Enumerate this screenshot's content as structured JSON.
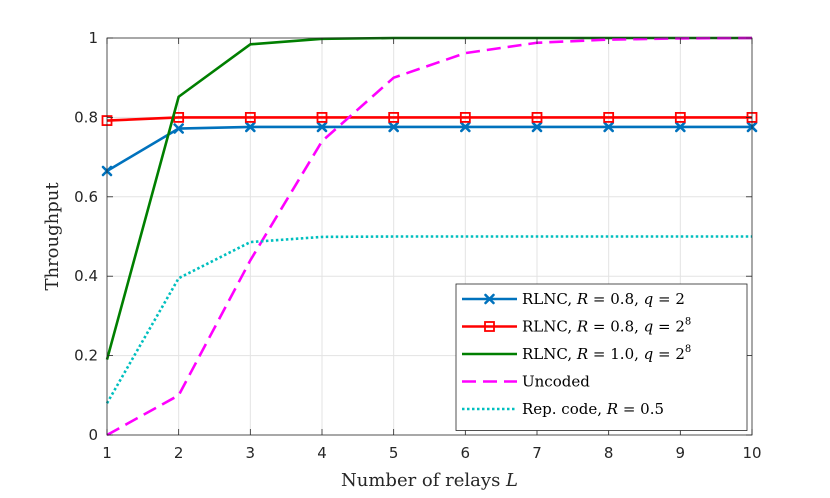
{
  "chart_data": {
    "type": "line",
    "title": "",
    "xlabel": "Number of relays L",
    "xlabel_parts": {
      "text": "Number of relays ",
      "var": "L"
    },
    "ylabel": "Throughput",
    "xlim": [
      1,
      10
    ],
    "ylim": [
      0,
      1
    ],
    "xticks": [
      1,
      2,
      3,
      4,
      5,
      6,
      7,
      8,
      9,
      10
    ],
    "yticks": [
      0,
      0.2,
      0.4,
      0.6,
      0.8,
      1
    ],
    "ytick_labels": [
      "0",
      "0.2",
      "0.4",
      "0.6",
      "0.8",
      "1"
    ],
    "grid": true,
    "legend_position": "bottom-right",
    "series": [
      {
        "name": "RLNC, R = 0.8, q = 2",
        "legend_parts": {
          "pre": "RLNC, ",
          "a_var": "R",
          "a_val": " = 0.8, ",
          "b_var": "q",
          "b_val": " = 2",
          "sup": ""
        },
        "color": "#0072BD",
        "style": "solid",
        "marker": "x",
        "x": [
          1,
          2,
          3,
          4,
          5,
          6,
          7,
          8,
          9,
          10
        ],
        "values": [
          0.665,
          0.772,
          0.776,
          0.776,
          0.776,
          0.776,
          0.776,
          0.776,
          0.776,
          0.776
        ]
      },
      {
        "name": "RLNC, R = 0.8, q = 2^8",
        "legend_parts": {
          "pre": "RLNC, ",
          "a_var": "R",
          "a_val": " = 0.8, ",
          "b_var": "q",
          "b_val": " = 2",
          "sup": "8"
        },
        "color": "#FF0000",
        "style": "solid",
        "marker": "square",
        "x": [
          1,
          2,
          3,
          4,
          5,
          6,
          7,
          8,
          9,
          10
        ],
        "values": [
          0.792,
          0.8,
          0.8,
          0.8,
          0.8,
          0.8,
          0.8,
          0.8,
          0.8,
          0.8
        ]
      },
      {
        "name": "RLNC, R = 1.0, q = 2^8",
        "legend_parts": {
          "pre": "RLNC, ",
          "a_var": "R",
          "a_val": " = 1.0, ",
          "b_var": "q",
          "b_val": " = 2",
          "sup": "8"
        },
        "color": "#007F00",
        "style": "solid",
        "marker": "none",
        "x": [
          1,
          2,
          3,
          4,
          5,
          6,
          7,
          8,
          9,
          10
        ],
        "values": [
          0.19,
          0.852,
          0.984,
          0.998,
          1.0,
          1.0,
          1.0,
          1.0,
          1.0,
          1.0
        ]
      },
      {
        "name": "Uncoded",
        "legend_parts": {
          "pre": "Uncoded",
          "a_var": "",
          "a_val": "",
          "b_var": "",
          "b_val": "",
          "sup": ""
        },
        "color": "#FF00FF",
        "style": "dashed",
        "marker": "none",
        "x": [
          1,
          2,
          3,
          4,
          5,
          6,
          7,
          8,
          9,
          10
        ],
        "values": [
          0.0,
          0.1,
          0.44,
          0.74,
          0.9,
          0.962,
          0.988,
          0.996,
          0.999,
          1.0
        ]
      },
      {
        "name": "Rep. code, R = 0.5",
        "legend_parts": {
          "pre": "Rep. code, ",
          "a_var": "R",
          "a_val": " = 0.5",
          "b_var": "",
          "b_val": "",
          "sup": ""
        },
        "color": "#00BFBF",
        "style": "dotted",
        "marker": "none",
        "x": [
          1,
          2,
          3,
          4,
          5,
          6,
          7,
          8,
          9,
          10
        ],
        "values": [
          0.08,
          0.395,
          0.486,
          0.499,
          0.5,
          0.5,
          0.5,
          0.5,
          0.5,
          0.5
        ]
      }
    ]
  }
}
